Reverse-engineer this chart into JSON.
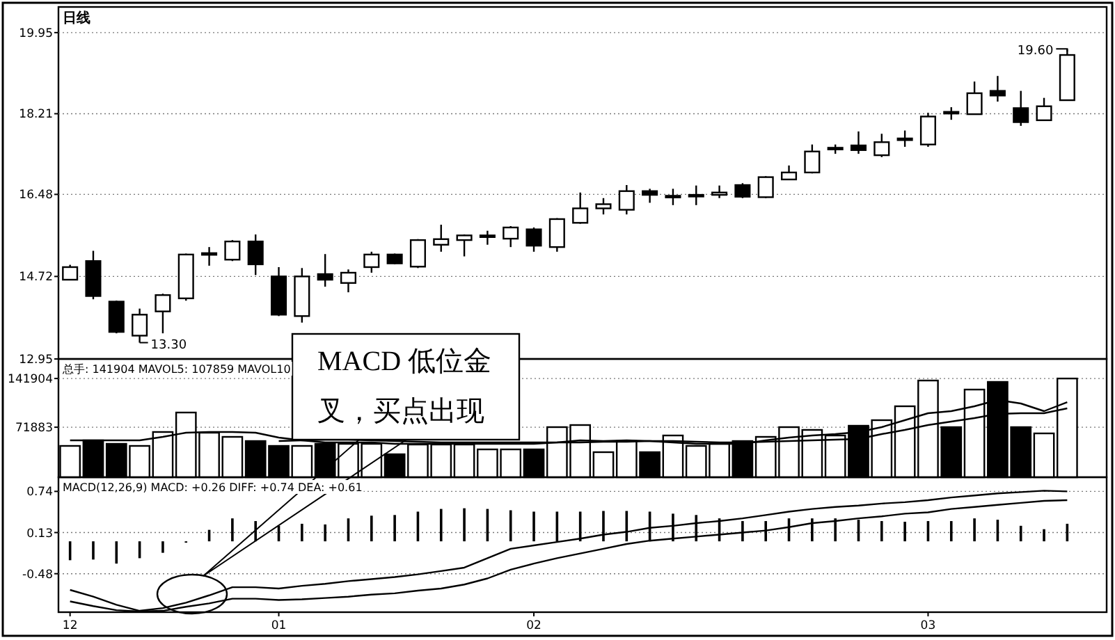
{
  "chart_data": [
    {
      "type": "candlestick",
      "title": "日线",
      "categories": [
        "12",
        null,
        null,
        null,
        null,
        null,
        null,
        null,
        null,
        "01",
        null,
        null,
        null,
        null,
        null,
        null,
        null,
        null,
        null,
        null,
        "02",
        null,
        null,
        null,
        null,
        null,
        null,
        null,
        null,
        null,
        null,
        null,
        null,
        null,
        null,
        null,
        null,
        "03",
        null,
        null,
        null,
        null,
        null,
        null
      ],
      "ohlc": [
        [
          14.65,
          14.97,
          14.65,
          14.92
        ],
        [
          15.05,
          15.27,
          14.23,
          14.3
        ],
        [
          14.18,
          14.2,
          13.5,
          13.53
        ],
        [
          13.45,
          14.03,
          13.3,
          13.9
        ],
        [
          13.97,
          14.35,
          13.5,
          14.32
        ],
        [
          14.25,
          15.21,
          14.2,
          15.19
        ],
        [
          15.19,
          15.35,
          14.95,
          15.22
        ],
        [
          15.08,
          15.5,
          15.05,
          15.47
        ],
        [
          15.47,
          15.62,
          14.75,
          14.98
        ],
        [
          14.72,
          14.92,
          13.87,
          13.9
        ],
        [
          13.87,
          14.9,
          13.73,
          14.72
        ],
        [
          14.77,
          15.2,
          14.5,
          14.65
        ],
        [
          14.58,
          14.87,
          14.38,
          14.8
        ],
        [
          14.92,
          15.25,
          14.8,
          15.19
        ],
        [
          15.19,
          15.21,
          14.98,
          15.0
        ],
        [
          14.93,
          15.52,
          14.9,
          15.5
        ],
        [
          15.4,
          15.83,
          15.25,
          15.52
        ],
        [
          15.5,
          15.62,
          15.15,
          15.6
        ],
        [
          15.58,
          15.7,
          15.4,
          15.6
        ],
        [
          15.53,
          15.8,
          15.35,
          15.77
        ],
        [
          15.73,
          15.77,
          15.25,
          15.38
        ],
        [
          15.35,
          15.97,
          15.25,
          15.95
        ],
        [
          15.87,
          16.52,
          15.85,
          16.18
        ],
        [
          16.18,
          16.4,
          16.05,
          16.27
        ],
        [
          16.15,
          16.68,
          16.05,
          16.55
        ],
        [
          16.55,
          16.6,
          16.3,
          16.47
        ],
        [
          16.43,
          16.6,
          16.25,
          16.45
        ],
        [
          16.45,
          16.67,
          16.25,
          16.47
        ],
        [
          16.47,
          16.67,
          16.4,
          16.52
        ],
        [
          16.68,
          16.72,
          16.4,
          16.43
        ],
        [
          16.42,
          16.87,
          16.4,
          16.85
        ],
        [
          16.8,
          17.1,
          16.8,
          16.95
        ],
        [
          16.95,
          17.55,
          16.93,
          17.4
        ],
        [
          17.45,
          17.55,
          17.35,
          17.48
        ],
        [
          17.53,
          17.83,
          17.35,
          17.43
        ],
        [
          17.32,
          17.78,
          17.28,
          17.6
        ],
        [
          17.65,
          17.85,
          17.5,
          17.68
        ],
        [
          17.55,
          18.23,
          17.5,
          18.15
        ],
        [
          18.25,
          18.35,
          18.08,
          18.23
        ],
        [
          18.2,
          18.9,
          18.2,
          18.65
        ],
        [
          18.7,
          19.02,
          18.47,
          18.6
        ],
        [
          18.33,
          18.7,
          17.95,
          18.03
        ],
        [
          18.07,
          18.55,
          18.07,
          18.37
        ],
        [
          18.5,
          19.6,
          18.5,
          19.47
        ]
      ],
      "colors": [
        "#ffffff",
        "#000000",
        "#000000",
        "#ffffff",
        "#ffffff",
        "#ffffff",
        "#ffffff",
        "#ffffff",
        "#000000",
        "#000000",
        "#ffffff",
        "#000000",
        "#ffffff",
        "#ffffff",
        "#000000",
        "#ffffff",
        "#ffffff",
        "#ffffff",
        "#ffffff",
        "#ffffff",
        "#000000",
        "#ffffff",
        "#ffffff",
        "#ffffff",
        "#ffffff",
        "#000000",
        "#ffffff",
        "#ffffff",
        "#ffffff",
        "#000000",
        "#ffffff",
        "#ffffff",
        "#ffffff",
        "#ffffff",
        "#000000",
        "#ffffff",
        "#ffffff",
        "#ffffff",
        "#000000",
        "#ffffff",
        "#000000",
        "#000000",
        "#ffffff",
        "#ffffff"
      ],
      "ylim": [
        12.95,
        20.5
      ],
      "yticks": [
        19.95,
        18.21,
        16.48,
        14.72,
        12.95
      ],
      "grid": "y",
      "tick_labels": "y",
      "annotations": [
        "13.30",
        "19.60"
      ]
    },
    {
      "type": "bar",
      "categories": [
        "12",
        null,
        null,
        null,
        null,
        null,
        null,
        null,
        null,
        "01",
        null,
        null,
        null,
        null,
        null,
        null,
        null,
        null,
        null,
        null,
        "02",
        null,
        null,
        null,
        null,
        null,
        null,
        null,
        null,
        null,
        null,
        null,
        null,
        null,
        null,
        null,
        null,
        "03",
        null,
        null,
        null,
        null,
        null,
        null
      ],
      "series": [
        {
          "type": "bar",
          "colors": [
            "#ffffff",
            "#000000",
            "#000000",
            "#ffffff",
            "#ffffff",
            "#ffffff",
            "#ffffff",
            "#ffffff",
            "#000000",
            "#000000",
            "#ffffff",
            "#000000",
            "#ffffff",
            "#ffffff",
            "#000000",
            "#ffffff",
            "#ffffff",
            "#ffffff",
            "#ffffff",
            "#ffffff",
            "#000000",
            "#ffffff",
            "#ffffff",
            "#ffffff",
            "#ffffff",
            "#000000",
            "#ffffff",
            "#ffffff",
            "#ffffff",
            "#000000",
            "#ffffff",
            "#ffffff",
            "#ffffff",
            "#ffffff",
            "#000000",
            "#ffffff",
            "#ffffff",
            "#ffffff",
            "#000000",
            "#ffffff",
            "#000000",
            "#000000",
            "#ffffff",
            "#ffffff"
          ],
          "values": [
            45000,
            53000,
            48000,
            45000,
            65000,
            93000,
            64000,
            58000,
            52000,
            45000,
            45000,
            48000,
            48000,
            48000,
            33000,
            47000,
            47000,
            47000,
            40000,
            40000,
            40000,
            72000,
            75000,
            36000,
            52000,
            36000,
            60000,
            45000,
            48000,
            52000,
            58000,
            72000,
            68000,
            60000,
            74000,
            82000,
            102000,
            139000,
            72000,
            126000,
            137000,
            72000,
            63000,
            141904
          ]
        },
        {
          "type": "line",
          "color": "#000000",
          "values": [
            53000,
            53000,
            53000,
            53000,
            58000,
            64000,
            65000,
            65000,
            64000,
            57000,
            53000,
            50000,
            50000,
            50000,
            48000,
            48000,
            48000,
            48000,
            48000,
            48000,
            48000,
            50000,
            53000,
            52000,
            53000,
            52000,
            50000,
            48000,
            48000,
            48000,
            53000,
            57000,
            60000,
            62000,
            65000,
            72000,
            82000,
            92000,
            95000,
            102000,
            111000,
            106000,
            95000,
            107859
          ]
        },
        {
          "type": "line",
          "color": "#000000",
          "values": [
            null,
            null,
            null,
            null,
            null,
            null,
            null,
            null,
            null,
            52000,
            53000,
            54000,
            54000,
            53000,
            52000,
            51000,
            50000,
            50000,
            50000,
            50000,
            50000,
            50000,
            50000,
            51000,
            51000,
            52000,
            52000,
            51000,
            50000,
            50000,
            51000,
            52000,
            53000,
            54000,
            55000,
            62000,
            68000,
            75000,
            80000,
            85000,
            91000,
            92000,
            92000,
            99000
          ]
        }
      ],
      "ylim": [
        0,
        170000
      ],
      "yticks": [
        71883,
        141904
      ],
      "grid": "y",
      "tick_labels": "y",
      "annotations": [
        "总手: 141904 MAVOL5: 107859 MAVOL10"
      ]
    },
    {
      "type": "bar",
      "categories": [
        "12",
        null,
        null,
        null,
        null,
        null,
        null,
        null,
        null,
        "01",
        null,
        null,
        null,
        null,
        null,
        null,
        null,
        null,
        null,
        null,
        "02",
        null,
        null,
        null,
        null,
        null,
        null,
        null,
        null,
        null,
        null,
        null,
        null,
        null,
        null,
        null,
        null,
        "03",
        null,
        null,
        null,
        null,
        null,
        null
      ],
      "series": [
        {
          "type": "bar",
          "color": "#000000",
          "values": [
            -0.28,
            -0.27,
            -0.33,
            -0.25,
            -0.17,
            -0.02,
            0.17,
            0.34,
            0.3,
            0.23,
            0.26,
            0.25,
            0.34,
            0.38,
            0.39,
            0.44,
            0.48,
            0.49,
            0.48,
            0.46,
            0.44,
            0.44,
            0.44,
            0.45,
            0.45,
            0.44,
            0.41,
            0.39,
            0.34,
            0.3,
            0.3,
            0.34,
            0.34,
            0.34,
            0.32,
            0.3,
            0.29,
            0.3,
            0.3,
            0.34,
            0.32,
            0.23,
            0.18,
            0.26
          ]
        },
        {
          "type": "line",
          "color": "#000000",
          "values": [
            -0.72,
            -0.82,
            -0.94,
            -1.03,
            -0.99,
            -0.91,
            -0.8,
            -0.68,
            -0.68,
            -0.7,
            -0.66,
            -0.63,
            -0.59,
            -0.56,
            -0.53,
            -0.49,
            -0.44,
            -0.39,
            -0.25,
            -0.11,
            -0.06,
            -0.01,
            0.04,
            0.1,
            0.14,
            0.2,
            0.23,
            0.27,
            0.3,
            0.34,
            0.39,
            0.44,
            0.48,
            0.51,
            0.53,
            0.56,
            0.58,
            0.61,
            0.65,
            0.68,
            0.71,
            0.73,
            0.75,
            0.74
          ]
        },
        {
          "type": "line",
          "color": "#000000",
          "values": [
            -0.89,
            -0.96,
            -1.02,
            -1.04,
            -1.03,
            -0.97,
            -0.92,
            -0.85,
            -0.85,
            -0.87,
            -0.86,
            -0.84,
            -0.82,
            -0.79,
            -0.77,
            -0.73,
            -0.7,
            -0.64,
            -0.55,
            -0.42,
            -0.33,
            -0.25,
            -0.18,
            -0.11,
            -0.04,
            0.01,
            0.04,
            0.07,
            0.1,
            0.13,
            0.16,
            0.21,
            0.27,
            0.3,
            0.34,
            0.37,
            0.41,
            0.43,
            0.48,
            0.51,
            0.54,
            0.57,
            0.6,
            0.61
          ]
        }
      ],
      "ylim": [
        -1.05,
        0.95
      ],
      "yticks": [
        0.74,
        0.13,
        -0.48
      ],
      "grid": "y",
      "annotations": [
        "MACD(12,26,9) MACD: +0.26 DIFF: +0.74 DEA: +0.61",
        "MACD 低位金叉，买点出现"
      ]
    }
  ]
}
